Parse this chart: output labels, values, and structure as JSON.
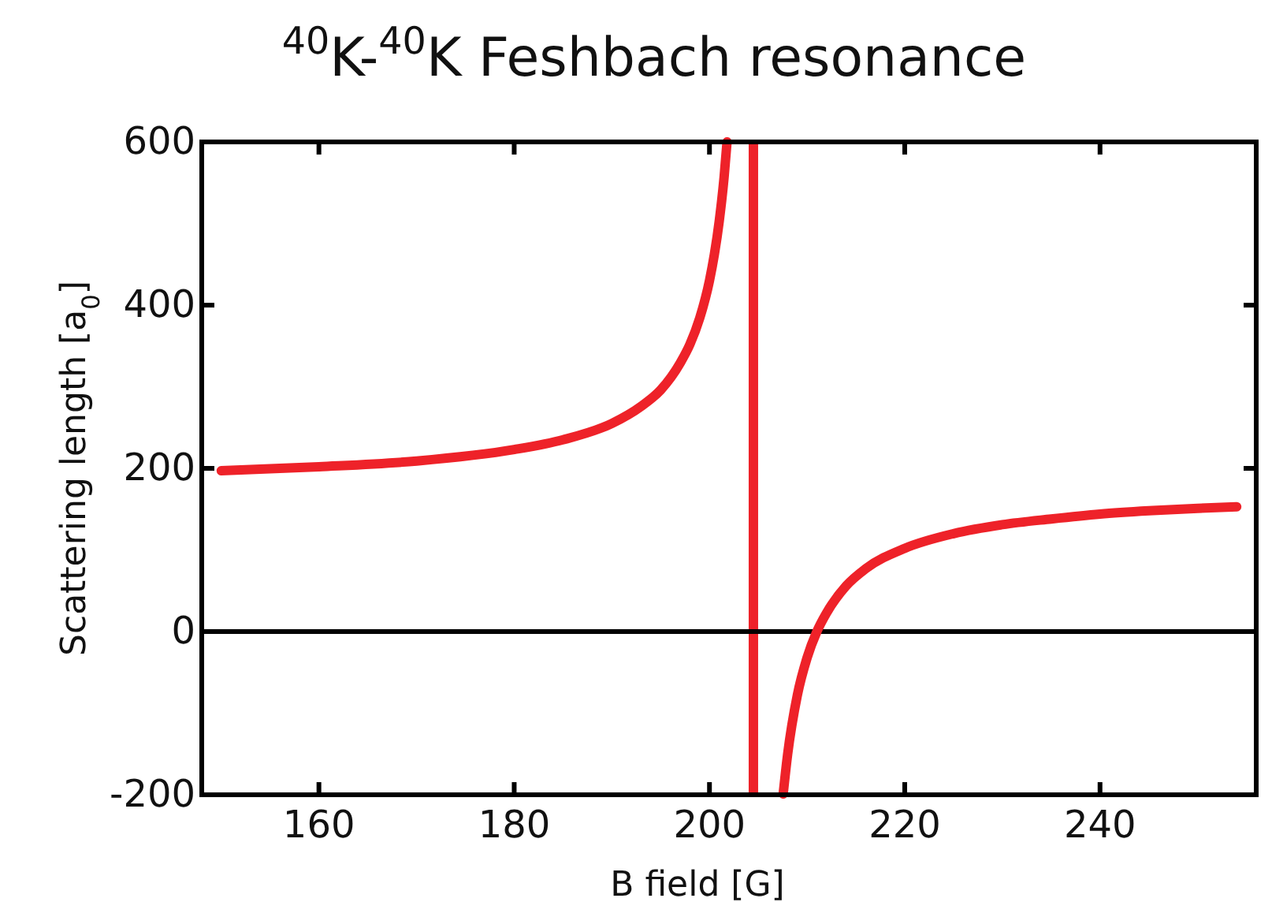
{
  "chart_data": {
    "type": "line",
    "title": "$^{40}$K-$^{40}$K Feshbach resonance",
    "xlabel": "B field [G]",
    "ylabel": "Scattering length [a$_{0}$]",
    "x": [
      150,
      160,
      170,
      180,
      185,
      190,
      193,
      195,
      197,
      198,
      199,
      200,
      200.5,
      201,
      201.5,
      201.8,
      204.5,
      207.55,
      208,
      209,
      210,
      211,
      212,
      214,
      216,
      220,
      225,
      230,
      235,
      240,
      245,
      250,
      254
    ],
    "series": [
      {
        "color": "#ee2229",
        "values": [
          197,
          202,
          209,
          223,
          235,
          255,
          276,
          296,
          329,
          352,
          384,
          430,
          462,
          503,
          557,
          600,
          null,
          -199,
          -151,
          -78,
          -32,
          0,
          23,
          56,
          77,
          102,
          120,
          131,
          138,
          144,
          148,
          151,
          153
        ]
      }
    ],
    "xlim": [
      148,
      256
    ],
    "ylim": [
      -200,
      600
    ],
    "xticks": [
      160,
      180,
      200,
      220,
      240
    ],
    "yticks": [
      -200,
      0,
      200,
      400,
      600
    ],
    "ref_lines": [
      {
        "axis": "x",
        "value": 204.5,
        "color": "#ee2229"
      },
      {
        "axis": "y",
        "value": 0,
        "color": "#000000"
      }
    ],
    "grid": false,
    "marker": "none",
    "line_style": "solid"
  }
}
